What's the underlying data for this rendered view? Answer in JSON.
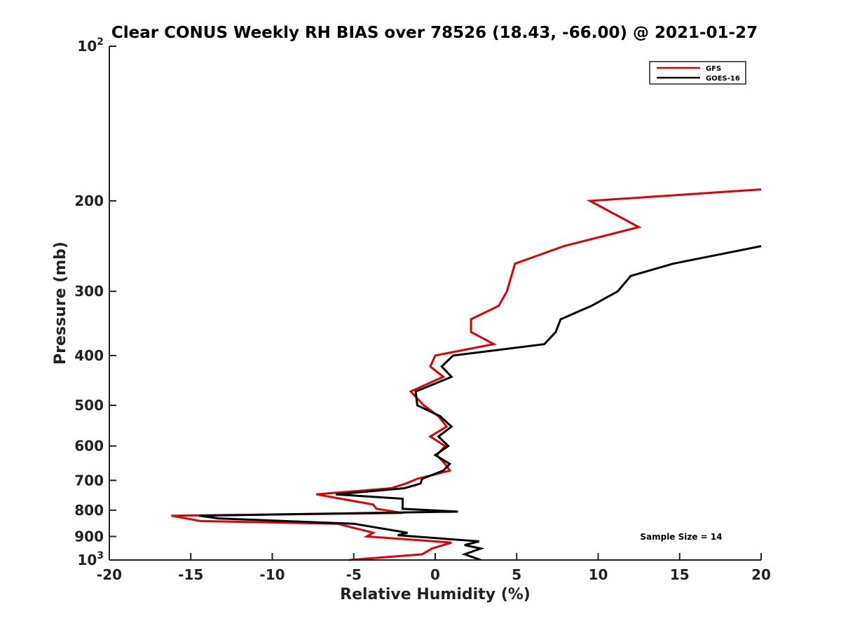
{
  "chart_data": {
    "type": "line",
    "title": "Clear CONUS Weekly RH BIAS over 78526 (18.43, -66.00) @ 2021-01-27",
    "xlabel": "Relative Humidity (%)",
    "ylabel": "Pressure (mb)",
    "xlim": [
      -20,
      20
    ],
    "ylim": [
      100,
      1000
    ],
    "y_scale": "log",
    "y_reversed": true,
    "x_ticks": [
      "-20",
      "-15",
      "-10",
      "-5",
      "0",
      "5",
      "10",
      "15",
      "20"
    ],
    "x_tick_values": [
      -20,
      -15,
      -10,
      -5,
      0,
      5,
      10,
      15,
      20
    ],
    "y_tick_values": [
      200,
      300,
      400,
      500,
      600,
      700,
      800,
      900
    ],
    "y_ticks": [
      "200",
      "300",
      "400",
      "500",
      "600",
      "700",
      "800",
      "900"
    ],
    "y_end_ticks": {
      "top_base": "10",
      "top_exp": "2",
      "bottom_base": "10",
      "bottom_exp": "3"
    },
    "legend_position": "top-right",
    "grid": false,
    "annotation": "Sample Size = 14",
    "series": [
      {
        "name": "GFS",
        "color": "#e00000",
        "points": [
          [
            -5.3,
            1000
          ],
          [
            -0.8,
            975
          ],
          [
            -0.2,
            950
          ],
          [
            1.0,
            925
          ],
          [
            -4.2,
            900
          ],
          [
            -3.8,
            885
          ],
          [
            -6.0,
            850
          ],
          [
            -14.4,
            840
          ],
          [
            -16.2,
            820
          ],
          [
            -2.0,
            810
          ],
          [
            -3.6,
            795
          ],
          [
            -3.8,
            780
          ],
          [
            -7.3,
            745
          ],
          [
            -2.7,
            725
          ],
          [
            -1.8,
            710
          ],
          [
            -1.1,
            695
          ],
          [
            0.9,
            670
          ],
          [
            0.6,
            650
          ],
          [
            0.1,
            625
          ],
          [
            0.6,
            600
          ],
          [
            -0.3,
            575
          ],
          [
            0.7,
            550
          ],
          [
            0.2,
            525
          ],
          [
            -0.7,
            500
          ],
          [
            -1.5,
            470
          ],
          [
            0.5,
            440
          ],
          [
            -0.3,
            420
          ],
          [
            0.0,
            400
          ],
          [
            3.6,
            380
          ],
          [
            2.2,
            360
          ],
          [
            2.2,
            340
          ],
          [
            3.9,
            320
          ],
          [
            4.4,
            300
          ],
          [
            4.9,
            265
          ],
          [
            7.9,
            245
          ],
          [
            12.5,
            225
          ],
          [
            9.5,
            200
          ],
          [
            20.0,
            190
          ]
        ]
      },
      {
        "name": "GOES-16",
        "color": "#000000",
        "points": [
          [
            2.8,
            1000
          ],
          [
            1.8,
            975
          ],
          [
            2.8,
            950
          ],
          [
            1.8,
            935
          ],
          [
            2.7,
            920
          ],
          [
            -2.3,
            895
          ],
          [
            -1.7,
            885
          ],
          [
            -5.0,
            850
          ],
          [
            -13.3,
            830
          ],
          [
            -14.5,
            820
          ],
          [
            1.4,
            805
          ],
          [
            -2.0,
            795
          ],
          [
            -2.0,
            760
          ],
          [
            -6.1,
            745
          ],
          [
            -1.9,
            725
          ],
          [
            -0.9,
            710
          ],
          [
            -0.8,
            695
          ],
          [
            0.5,
            670
          ],
          [
            0.9,
            650
          ],
          [
            0.0,
            625
          ],
          [
            0.8,
            600
          ],
          [
            0.2,
            575
          ],
          [
            1.0,
            550
          ],
          [
            0.3,
            525
          ],
          [
            -1.1,
            500
          ],
          [
            -1.2,
            470
          ],
          [
            1.0,
            440
          ],
          [
            0.4,
            420
          ],
          [
            1.1,
            400
          ],
          [
            6.7,
            380
          ],
          [
            7.4,
            360
          ],
          [
            7.7,
            340
          ],
          [
            9.6,
            320
          ],
          [
            11.2,
            300
          ],
          [
            12.0,
            280
          ],
          [
            14.6,
            265
          ],
          [
            20.0,
            245
          ]
        ]
      }
    ]
  }
}
